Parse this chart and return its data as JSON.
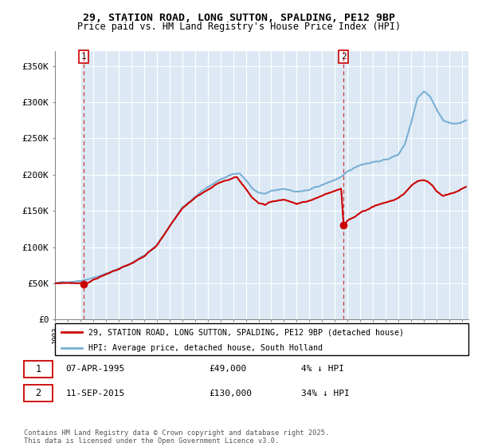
{
  "title_line1": "29, STATION ROAD, LONG SUTTON, SPALDING, PE12 9BP",
  "title_line2": "Price paid vs. HM Land Registry's House Price Index (HPI)",
  "ylim": [
    0,
    370000
  ],
  "yticks": [
    0,
    50000,
    100000,
    150000,
    200000,
    250000,
    300000,
    350000
  ],
  "ytick_labels": [
    "£0",
    "£50K",
    "£100K",
    "£150K",
    "£200K",
    "£250K",
    "£300K",
    "£350K"
  ],
  "background_color": "#ffffff",
  "plot_bg_color": "#dce9f5",
  "grid_color": "#ffffff",
  "sale1_date": 1995.27,
  "sale1_price": 49000,
  "sale2_date": 2015.69,
  "sale2_price": 130000,
  "legend_label_red": "29, STATION ROAD, LONG SUTTON, SPALDING, PE12 9BP (detached house)",
  "legend_label_blue": "HPI: Average price, detached house, South Holland",
  "footer": "Contains HM Land Registry data © Crown copyright and database right 2025.\nThis data is licensed under the Open Government Licence v3.0.",
  "red_color": "#cc0000",
  "hpi_color": "#7aafd4",
  "xmin": 1993,
  "xmax": 2025.5
}
